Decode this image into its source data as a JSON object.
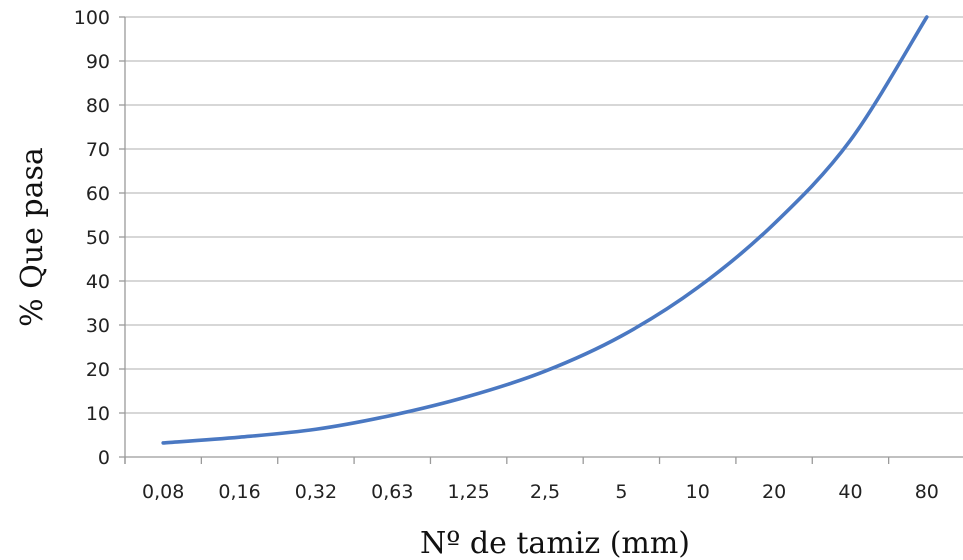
{
  "chart_data": {
    "type": "line",
    "title": "",
    "xlabel": "Nº de tamiz (mm)",
    "ylabel": "% Que pasa",
    "categories": [
      "0,08",
      "0,16",
      "0,32",
      "0,63",
      "1,25",
      "2,5",
      "5",
      "10",
      "20",
      "40",
      "80"
    ],
    "x": [
      0.08,
      0.16,
      0.32,
      0.63,
      1.25,
      2.5,
      5,
      10,
      20,
      40,
      80
    ],
    "x_scale": "log2 categorical",
    "ylim": [
      0,
      100
    ],
    "yticks": [
      0,
      10,
      20,
      30,
      40,
      50,
      60,
      70,
      80,
      90,
      100
    ],
    "grid": "horizontal",
    "legend": "none",
    "series": [
      {
        "color": "#4a78c2",
        "values": [
          3.2,
          4.5,
          6.3,
          9.5,
          13.8,
          19.5,
          27.5,
          38.5,
          53,
          72,
          100
        ]
      }
    ]
  }
}
